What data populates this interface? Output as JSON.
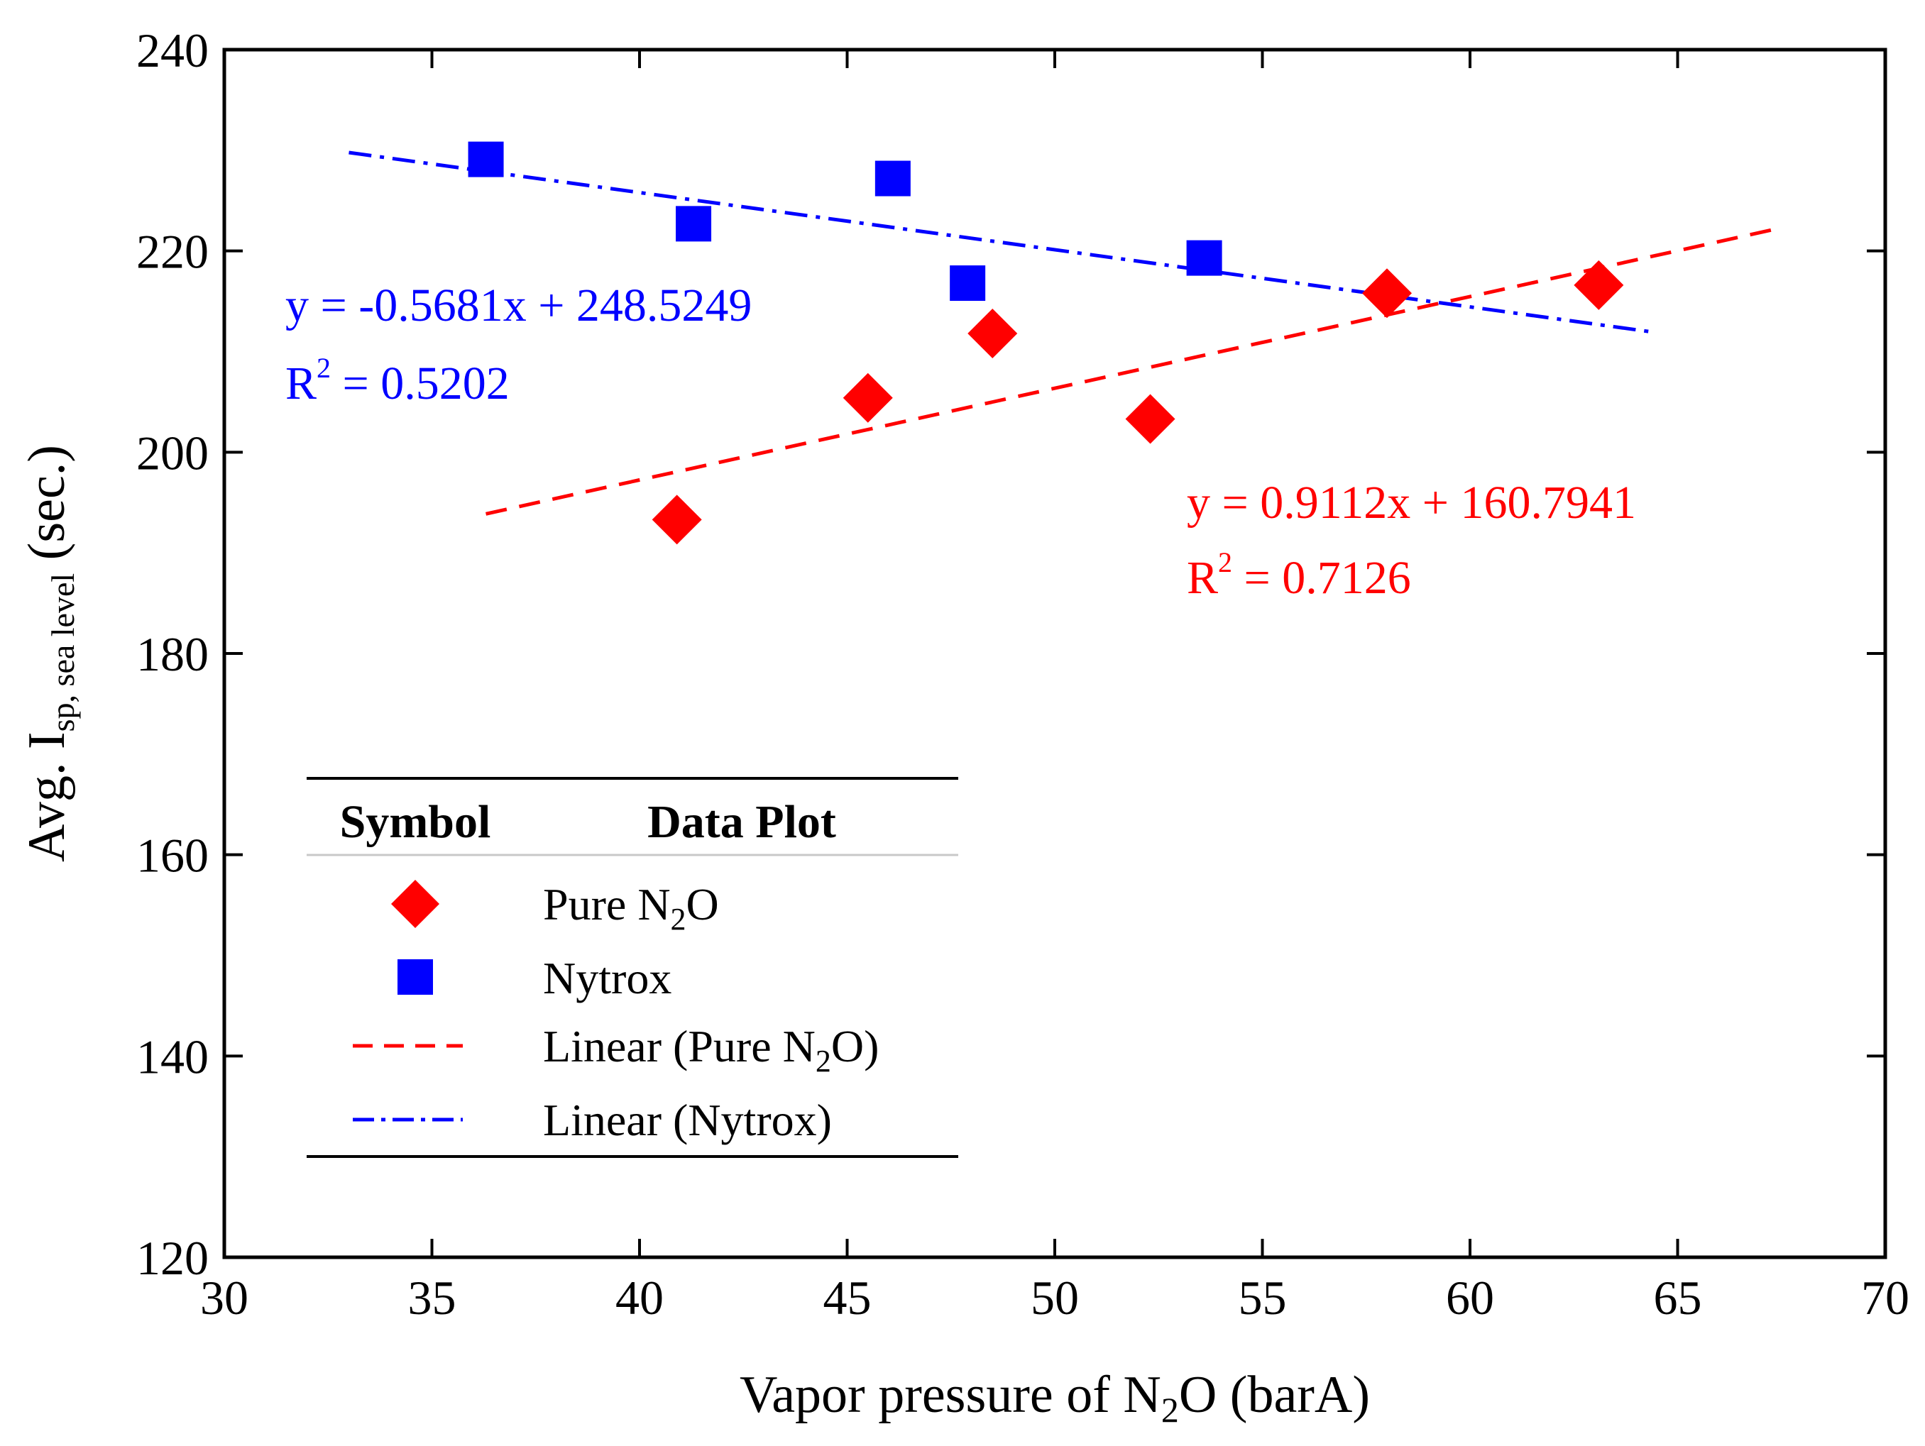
{
  "chart_data": {
    "type": "scatter",
    "xlabel": {
      "pre": "Vapor pressure of N",
      "sub": "2",
      "post": "O (barA)"
    },
    "ylabel": {
      "pre": "Avg. I",
      "sub": "sp, sea level",
      "post": " (sec.)"
    },
    "xlim": [
      30,
      70
    ],
    "ylim": [
      120,
      240
    ],
    "xticks": [
      30,
      35,
      40,
      45,
      50,
      55,
      60,
      65,
      70
    ],
    "yticks": [
      120,
      140,
      160,
      180,
      200,
      220,
      240
    ],
    "grid": false,
    "series": [
      {
        "key": "pure",
        "marker": "diamond",
        "color": "#ff0000",
        "points": [
          {
            "x": 40.9,
            "y": 193.3
          },
          {
            "x": 45.5,
            "y": 205.4
          },
          {
            "x": 48.5,
            "y": 211.8
          },
          {
            "x": 52.3,
            "y": 203.3
          },
          {
            "x": 58.0,
            "y": 215.8
          },
          {
            "x": 63.1,
            "y": 216.6
          }
        ]
      },
      {
        "key": "nytrox",
        "marker": "square",
        "color": "#0000ff",
        "points": [
          {
            "x": 36.3,
            "y": 229.1
          },
          {
            "x": 41.3,
            "y": 222.7
          },
          {
            "x": 46.1,
            "y": 227.2
          },
          {
            "x": 47.9,
            "y": 216.8
          },
          {
            "x": 53.6,
            "y": 219.3
          }
        ]
      }
    ],
    "trendlines": [
      {
        "key": "pure",
        "style": "dashed",
        "color": "#ff0000",
        "slope": 0.9112,
        "intercept": 160.7941,
        "x_range": [
          36.3,
          67.5
        ]
      },
      {
        "key": "nytrox",
        "style": "dash-dot",
        "color": "#0000ff",
        "slope": -0.5681,
        "intercept": 248.5249,
        "x_range": [
          33.0,
          64.3
        ]
      }
    ],
    "annotations": {
      "nytrox_equation": "y = -0.5681x + 248.5249",
      "nytrox_r2_value": " = 0.5202",
      "pure_equation": "y = 0.9112x + 160.7941",
      "pure_r2_value": " = 0.7126",
      "r2_symbol": "R",
      "r2_exponent": "2"
    },
    "legend": {
      "placement": "lower-left",
      "header_symbol": "Symbol",
      "header_plot": "Data Plot",
      "entries": {
        "pure": {
          "pre": "Pure N",
          "sub": "2",
          "post": "O"
        },
        "nytrox": {
          "label": "Nytrox"
        },
        "linear_pure": {
          "pre": "Linear (Pure N",
          "sub": "2",
          "post": "O)"
        },
        "linear_nytrox": {
          "label": "Linear (Nytrox)"
        }
      }
    }
  }
}
